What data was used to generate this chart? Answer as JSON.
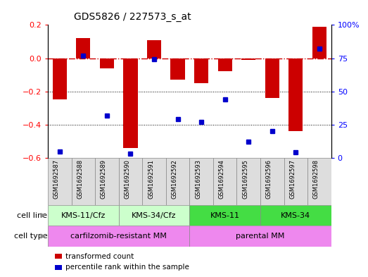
{
  "title": "GDS5826 / 227573_s_at",
  "samples": [
    "GSM1692587",
    "GSM1692588",
    "GSM1692589",
    "GSM1692590",
    "GSM1692591",
    "GSM1692592",
    "GSM1692593",
    "GSM1692594",
    "GSM1692595",
    "GSM1692596",
    "GSM1692597",
    "GSM1692598"
  ],
  "transformed_count": [
    -0.25,
    0.12,
    -0.06,
    -0.54,
    0.11,
    -0.13,
    -0.15,
    -0.08,
    -0.01,
    -0.24,
    -0.44,
    0.19
  ],
  "percentile_rank": [
    5,
    77,
    32,
    3,
    74,
    29,
    27,
    44,
    12,
    20,
    4,
    82
  ],
  "cell_line_groups": [
    {
      "label": "KMS-11/Cfz",
      "start": 0,
      "end": 2,
      "color": "#ccffcc"
    },
    {
      "label": "KMS-34/Cfz",
      "start": 3,
      "end": 5,
      "color": "#ccffcc"
    },
    {
      "label": "KMS-11",
      "start": 6,
      "end": 8,
      "color": "#44dd44"
    },
    {
      "label": "KMS-34",
      "start": 9,
      "end": 11,
      "color": "#44dd44"
    }
  ],
  "cell_type_groups": [
    {
      "label": "carfilzomib-resistant MM",
      "start": 0,
      "end": 5,
      "color": "#ee88ee"
    },
    {
      "label": "parental MM",
      "start": 6,
      "end": 11,
      "color": "#ee88ee"
    }
  ],
  "bar_color": "#cc0000",
  "dot_color": "#0000cc",
  "hline_color": "#cc0000",
  "left_ylim": [
    -0.6,
    0.2
  ],
  "left_yticks": [
    -0.6,
    -0.4,
    -0.2,
    0.0,
    0.2
  ],
  "right_ylim": [
    0,
    100
  ],
  "right_yticks": [
    0,
    25,
    50,
    75,
    100
  ],
  "right_yticklabels": [
    "0",
    "25",
    "50",
    "75",
    "100%"
  ],
  "legend_items": [
    "transformed count",
    "percentile rank within the sample"
  ],
  "sample_bg_color": "#dddddd",
  "cell_line_dividers": [
    2.5,
    5.5
  ],
  "cell_type_dividers": [
    5.5
  ]
}
